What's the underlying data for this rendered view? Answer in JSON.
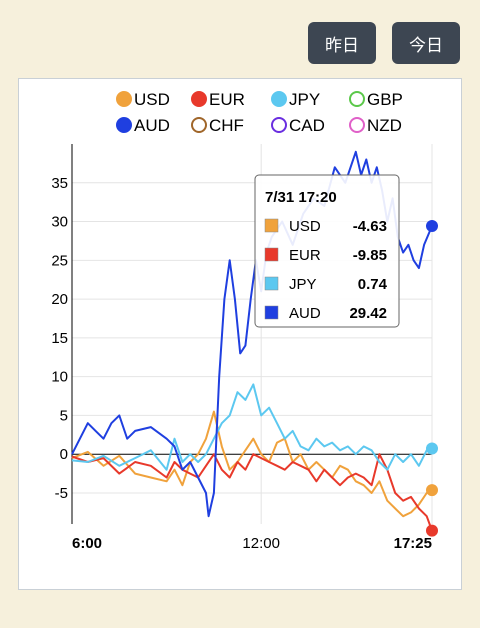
{
  "toolbar": {
    "yesterday_label": "昨日",
    "today_label": "今日"
  },
  "chart_data": {
    "type": "line",
    "title": "",
    "xlabel": "",
    "ylabel": "",
    "xlim": [
      "6:00",
      "17:25"
    ],
    "ylim": [
      -9,
      40
    ],
    "x_ticks": [
      "6:00",
      "12:00",
      "17:25"
    ],
    "y_ticks": [
      -5,
      0,
      5,
      10,
      15,
      20,
      25,
      30,
      35
    ],
    "grid": true,
    "legend": {
      "placement": "top",
      "entries": [
        {
          "name": "USD",
          "color": "#f0a23c",
          "filled": true
        },
        {
          "name": "EUR",
          "color": "#e8392b",
          "filled": true
        },
        {
          "name": "JPY",
          "color": "#5cc8f0",
          "filled": true
        },
        {
          "name": "GBP",
          "color": "#5bc84a",
          "filled": false
        },
        {
          "name": "AUD",
          "color": "#1f3fe0",
          "filled": true
        },
        {
          "name": "CHF",
          "color": "#a0662a",
          "filled": false
        },
        {
          "name": "CAD",
          "color": "#6a2ee0",
          "filled": false
        },
        {
          "name": "NZD",
          "color": "#e060c8",
          "filled": false
        }
      ]
    },
    "series": [
      {
        "name": "USD",
        "color": "#f0a23c",
        "points": [
          [
            "6:00",
            -0.5
          ],
          [
            "6:30",
            0.3
          ],
          [
            "7:00",
            -1.5
          ],
          [
            "7:30",
            -0.2
          ],
          [
            "8:00",
            -2.5
          ],
          [
            "8:30",
            -3
          ],
          [
            "9:00",
            -3.5
          ],
          [
            "9:15",
            -2
          ],
          [
            "9:30",
            -4
          ],
          [
            "9:45",
            -1
          ],
          [
            "10:00",
            0
          ],
          [
            "10:15",
            2
          ],
          [
            "10:30",
            5.5
          ],
          [
            "10:45",
            1
          ],
          [
            "11:00",
            -2
          ],
          [
            "11:15",
            -1
          ],
          [
            "11:30",
            0.5
          ],
          [
            "11:45",
            2
          ],
          [
            "12:00",
            0
          ],
          [
            "12:15",
            -1
          ],
          [
            "12:30",
            1.5
          ],
          [
            "12:45",
            2
          ],
          [
            "13:00",
            -1
          ],
          [
            "13:15",
            0
          ],
          [
            "13:30",
            -2
          ],
          [
            "13:45",
            -1
          ],
          [
            "14:00",
            -2
          ],
          [
            "14:15",
            -3
          ],
          [
            "14:30",
            -1.5
          ],
          [
            "14:45",
            -2
          ],
          [
            "15:00",
            -3.5
          ],
          [
            "15:15",
            -4
          ],
          [
            "15:30",
            -5
          ],
          [
            "15:45",
            -3.5
          ],
          [
            "16:00",
            -6
          ],
          [
            "16:15",
            -7
          ],
          [
            "16:30",
            -8
          ],
          [
            "16:45",
            -7.5
          ],
          [
            "17:00",
            -6.5
          ],
          [
            "17:15",
            -5
          ],
          [
            "17:25",
            -4.63
          ]
        ]
      },
      {
        "name": "EUR",
        "color": "#e8392b",
        "points": [
          [
            "6:00",
            -0.3
          ],
          [
            "6:30",
            -1
          ],
          [
            "7:00",
            -0.5
          ],
          [
            "7:30",
            -2.5
          ],
          [
            "8:00",
            -1
          ],
          [
            "8:30",
            -1.5
          ],
          [
            "9:00",
            -3
          ],
          [
            "9:15",
            -1
          ],
          [
            "9:30",
            -2
          ],
          [
            "9:45",
            -2.5
          ],
          [
            "10:00",
            -3
          ],
          [
            "10:15",
            -1.5
          ],
          [
            "10:30",
            0
          ],
          [
            "10:45",
            -2
          ],
          [
            "11:00",
            -3
          ],
          [
            "11:15",
            -1
          ],
          [
            "11:30",
            -2
          ],
          [
            "11:45",
            0
          ],
          [
            "12:00",
            -0.5
          ],
          [
            "12:15",
            -1
          ],
          [
            "12:30",
            -1.5
          ],
          [
            "12:45",
            -2
          ],
          [
            "13:00",
            -1
          ],
          [
            "13:15",
            -1.5
          ],
          [
            "13:30",
            -2
          ],
          [
            "13:45",
            -3.5
          ],
          [
            "14:00",
            -2
          ],
          [
            "14:15",
            -3
          ],
          [
            "14:30",
            -4
          ],
          [
            "14:45",
            -3
          ],
          [
            "15:00",
            -2.5
          ],
          [
            "15:15",
            -3
          ],
          [
            "15:30",
            -4
          ],
          [
            "15:45",
            0
          ],
          [
            "16:00",
            -2
          ],
          [
            "16:15",
            -5
          ],
          [
            "16:30",
            -6
          ],
          [
            "16:45",
            -5.5
          ],
          [
            "17:00",
            -7
          ],
          [
            "17:15",
            -8
          ],
          [
            "17:25",
            -9.85
          ]
        ]
      },
      {
        "name": "JPY",
        "color": "#5cc8f0",
        "points": [
          [
            "6:00",
            -0.8
          ],
          [
            "6:30",
            -1
          ],
          [
            "7:00",
            -0.2
          ],
          [
            "7:30",
            -1.5
          ],
          [
            "8:00",
            -0.5
          ],
          [
            "8:30",
            0.5
          ],
          [
            "9:00",
            -2
          ],
          [
            "9:15",
            2
          ],
          [
            "9:30",
            -1
          ],
          [
            "9:45",
            0
          ],
          [
            "10:00",
            -1
          ],
          [
            "10:15",
            0
          ],
          [
            "10:30",
            2
          ],
          [
            "10:45",
            4
          ],
          [
            "11:00",
            5
          ],
          [
            "11:15",
            8
          ],
          [
            "11:30",
            7
          ],
          [
            "11:45",
            9
          ],
          [
            "12:00",
            5
          ],
          [
            "12:15",
            6
          ],
          [
            "12:30",
            4
          ],
          [
            "12:45",
            2
          ],
          [
            "13:00",
            3
          ],
          [
            "13:15",
            1
          ],
          [
            "13:30",
            0.5
          ],
          [
            "13:45",
            2
          ],
          [
            "14:00",
            1
          ],
          [
            "14:15",
            1.5
          ],
          [
            "14:30",
            0.5
          ],
          [
            "14:45",
            1
          ],
          [
            "15:00",
            0
          ],
          [
            "15:15",
            1
          ],
          [
            "15:30",
            0.5
          ],
          [
            "15:45",
            -1
          ],
          [
            "16:00",
            -2
          ],
          [
            "16:15",
            0
          ],
          [
            "16:30",
            -1
          ],
          [
            "16:45",
            0
          ],
          [
            "17:00",
            -1.5
          ],
          [
            "17:15",
            0.5
          ],
          [
            "17:25",
            0.74
          ]
        ]
      },
      {
        "name": "AUD",
        "color": "#1f3fe0",
        "points": [
          [
            "6:00",
            0
          ],
          [
            "6:15",
            2
          ],
          [
            "6:30",
            4
          ],
          [
            "6:45",
            3
          ],
          [
            "7:00",
            2
          ],
          [
            "7:15",
            4
          ],
          [
            "7:30",
            5
          ],
          [
            "7:45",
            2
          ],
          [
            "8:00",
            3
          ],
          [
            "8:30",
            3.5
          ],
          [
            "9:00",
            2
          ],
          [
            "9:15",
            1
          ],
          [
            "9:30",
            -2
          ],
          [
            "9:45",
            -1
          ],
          [
            "10:00",
            -3
          ],
          [
            "10:15",
            -5
          ],
          [
            "10:20",
            -8
          ],
          [
            "10:30",
            -5
          ],
          [
            "10:40",
            10
          ],
          [
            "10:50",
            20
          ],
          [
            "11:00",
            25
          ],
          [
            "11:10",
            20
          ],
          [
            "11:20",
            13
          ],
          [
            "11:30",
            14
          ],
          [
            "11:40",
            20
          ],
          [
            "11:50",
            25
          ],
          [
            "12:00",
            21
          ],
          [
            "12:10",
            26
          ],
          [
            "12:20",
            28
          ],
          [
            "12:40",
            30
          ],
          [
            "13:00",
            27
          ],
          [
            "13:20",
            31
          ],
          [
            "13:40",
            33
          ],
          [
            "14:00",
            32
          ],
          [
            "14:20",
            37
          ],
          [
            "14:40",
            35
          ],
          [
            "15:00",
            39
          ],
          [
            "15:10",
            36
          ],
          [
            "15:20",
            38
          ],
          [
            "15:30",
            35
          ],
          [
            "15:40",
            37
          ],
          [
            "15:50",
            34
          ],
          [
            "16:00",
            30
          ],
          [
            "16:10",
            33
          ],
          [
            "16:20",
            28
          ],
          [
            "16:30",
            26
          ],
          [
            "16:40",
            27
          ],
          [
            "16:50",
            25
          ],
          [
            "17:00",
            24
          ],
          [
            "17:10",
            27
          ],
          [
            "17:25",
            29.42
          ]
        ]
      }
    ],
    "tooltip": {
      "time": "7/31 17:20",
      "rows": [
        {
          "name": "USD",
          "value": "-4.63",
          "color": "#f0a23c"
        },
        {
          "name": "EUR",
          "value": "-9.85",
          "color": "#e8392b"
        },
        {
          "name": "JPY",
          "value": "0.74",
          "color": "#5cc8f0"
        },
        {
          "name": "AUD",
          "value": "29.42",
          "color": "#1f3fe0"
        }
      ]
    }
  }
}
